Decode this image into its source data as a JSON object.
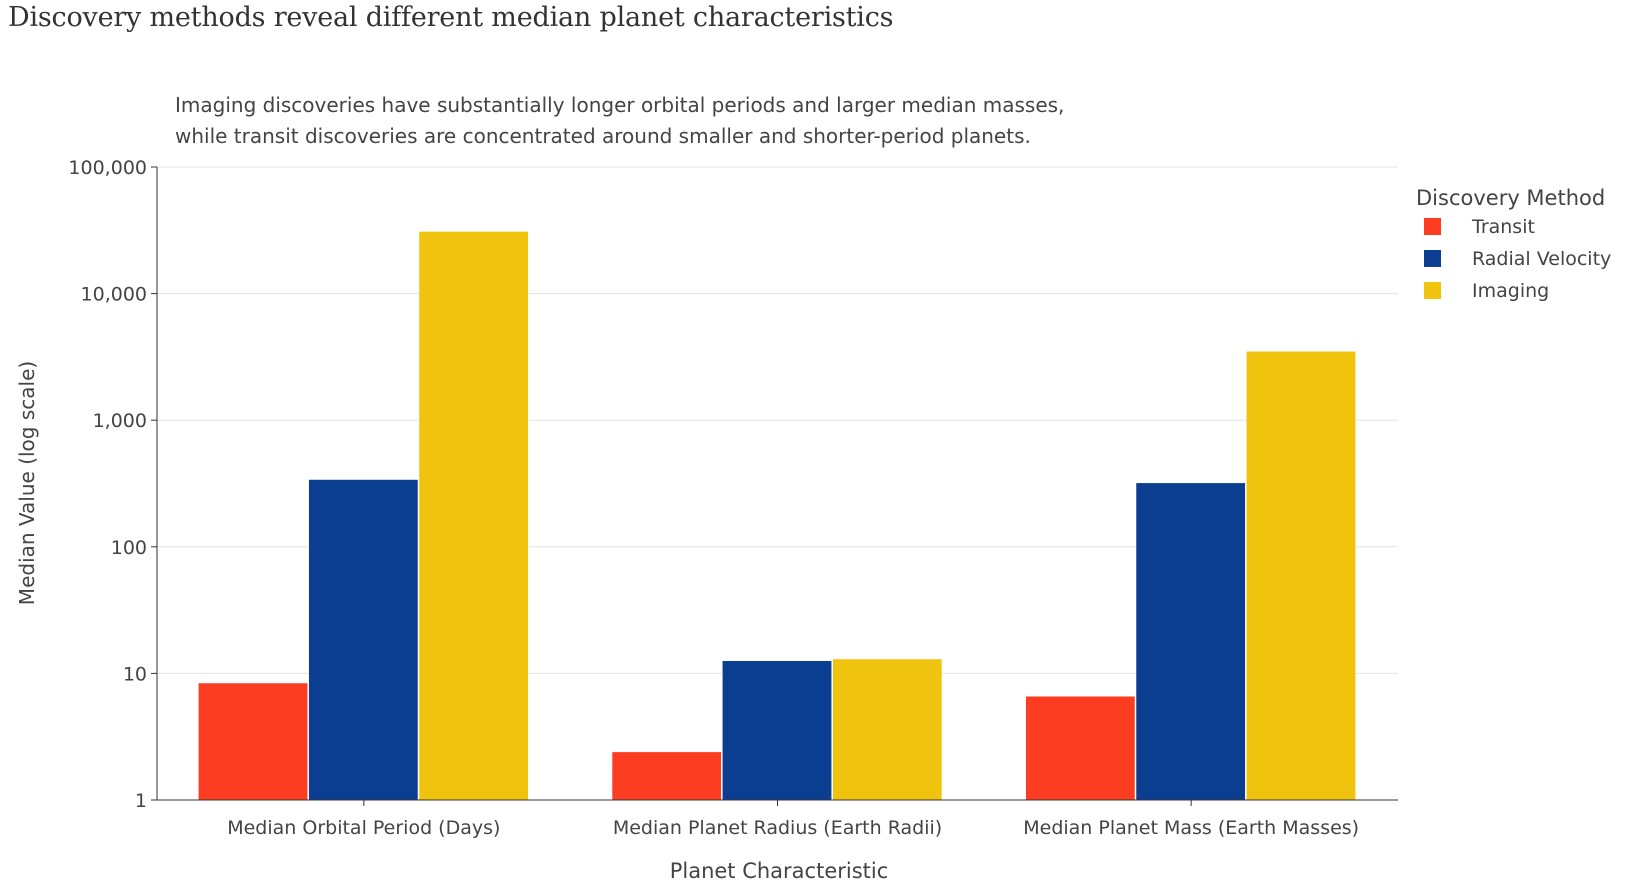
{
  "chart_data": {
    "type": "bar",
    "title": "Discovery methods reveal different median planet characteristics",
    "subtitle_lines": [
      "Imaging discoveries have substantially longer orbital periods and larger median masses,",
      "while transit discoveries are concentrated around smaller and shorter-period planets."
    ],
    "xlabel": "Planet Characteristic",
    "ylabel": "Median Value (log scale)",
    "yscale": "log",
    "ylim": [
      1,
      100000
    ],
    "yticks": [
      1,
      10,
      100,
      1000,
      10000,
      100000
    ],
    "ytick_labels": [
      "1",
      "10",
      "100",
      "1,000",
      "10,000",
      "100,000"
    ],
    "categories": [
      "Median Orbital Period (Days)",
      "Median Planet Radius (Earth Radii)",
      "Median Planet Mass (Earth Masses)"
    ],
    "series": [
      {
        "name": "Transit",
        "color": "#FC3D21",
        "values": [
          8.4,
          2.4,
          6.6
        ]
      },
      {
        "name": "Radial Velocity",
        "color": "#0B3D91",
        "values": [
          340,
          12.6,
          320
        ]
      },
      {
        "name": "Imaging",
        "color": "#F0C30F",
        "values": [
          31000,
          13,
          3500
        ]
      }
    ],
    "legend": {
      "title": "Discovery Method",
      "placement": "right"
    },
    "grid": true
  }
}
